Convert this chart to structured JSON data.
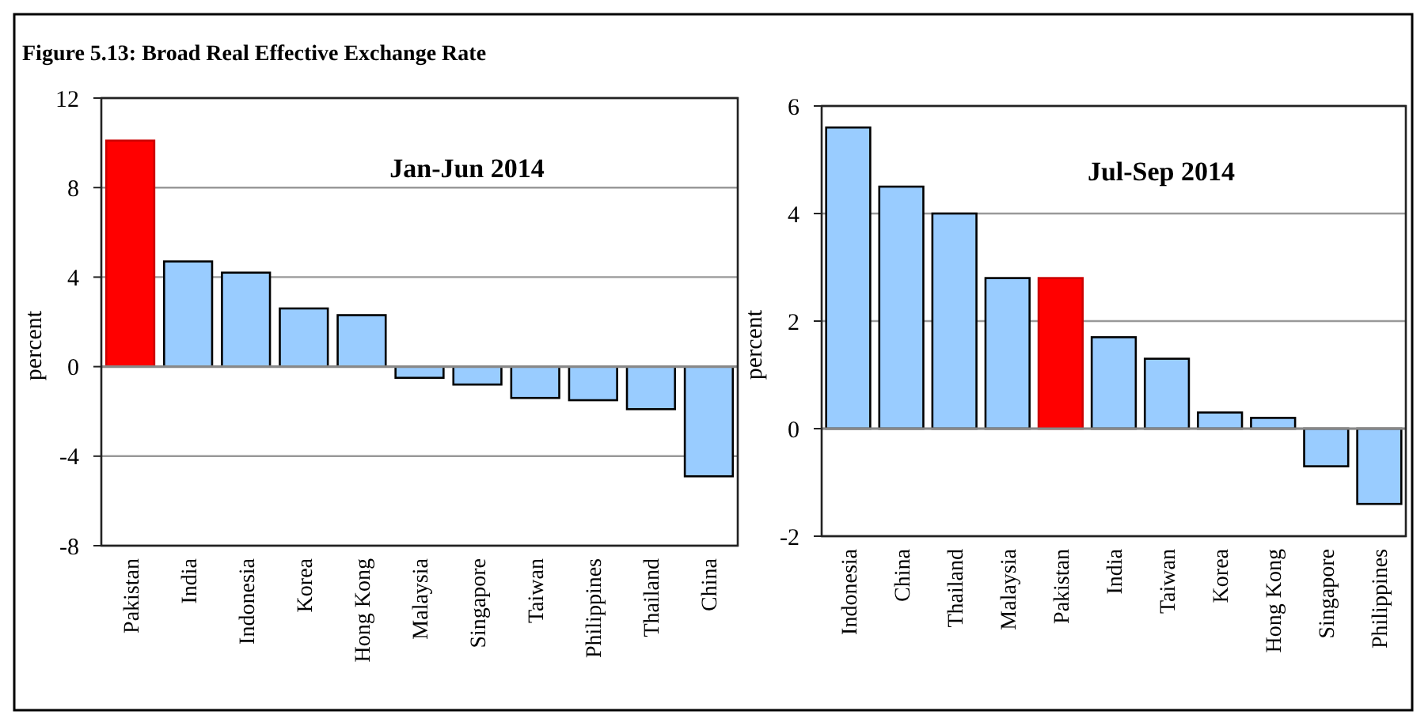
{
  "chart_data": [
    {
      "type": "bar",
      "title": "Figure 5.13: Broad Real Effective Exchange Rate",
      "subtitle": "Jan-Jun 2014",
      "ylabel": "percent",
      "categories": [
        "Pakistan",
        "India",
        "Indonesia",
        "Korea",
        "Hong Kong",
        "Malaysia",
        "Singapore",
        "Taiwan",
        "Philippines",
        "Thailand",
        "China"
      ],
      "values": [
        10.1,
        4.7,
        4.2,
        2.6,
        2.3,
        -0.5,
        -0.8,
        -1.4,
        -1.5,
        -1.9,
        -4.9
      ],
      "colors": [
        "#ff0000",
        "#99ccff",
        "#99ccff",
        "#99ccff",
        "#99ccff",
        "#99ccff",
        "#99ccff",
        "#99ccff",
        "#99ccff",
        "#99ccff",
        "#99ccff"
      ],
      "ylim": [
        -8,
        12
      ],
      "yticks": [
        -8,
        -4,
        0,
        4,
        8,
        12
      ],
      "grid": "y"
    },
    {
      "type": "bar",
      "subtitle": "Jul-Sep 2014",
      "ylabel": "percent",
      "categories": [
        "Indonesia",
        "China",
        "Thailand",
        "Malaysia",
        "Pakistan",
        "India",
        "Taiwan",
        "Korea",
        "Hong Kong",
        "Singapore",
        "Philippines"
      ],
      "values": [
        5.6,
        4.5,
        4.0,
        2.8,
        2.8,
        1.7,
        1.3,
        0.3,
        0.2,
        -0.7,
        -1.4
      ],
      "colors": [
        "#99ccff",
        "#99ccff",
        "#99ccff",
        "#99ccff",
        "#ff0000",
        "#99ccff",
        "#99ccff",
        "#99ccff",
        "#99ccff",
        "#99ccff",
        "#99ccff"
      ],
      "ylim": [
        -2,
        6
      ],
      "yticks": [
        -2,
        0,
        2,
        4,
        6
      ],
      "grid": "y"
    }
  ]
}
